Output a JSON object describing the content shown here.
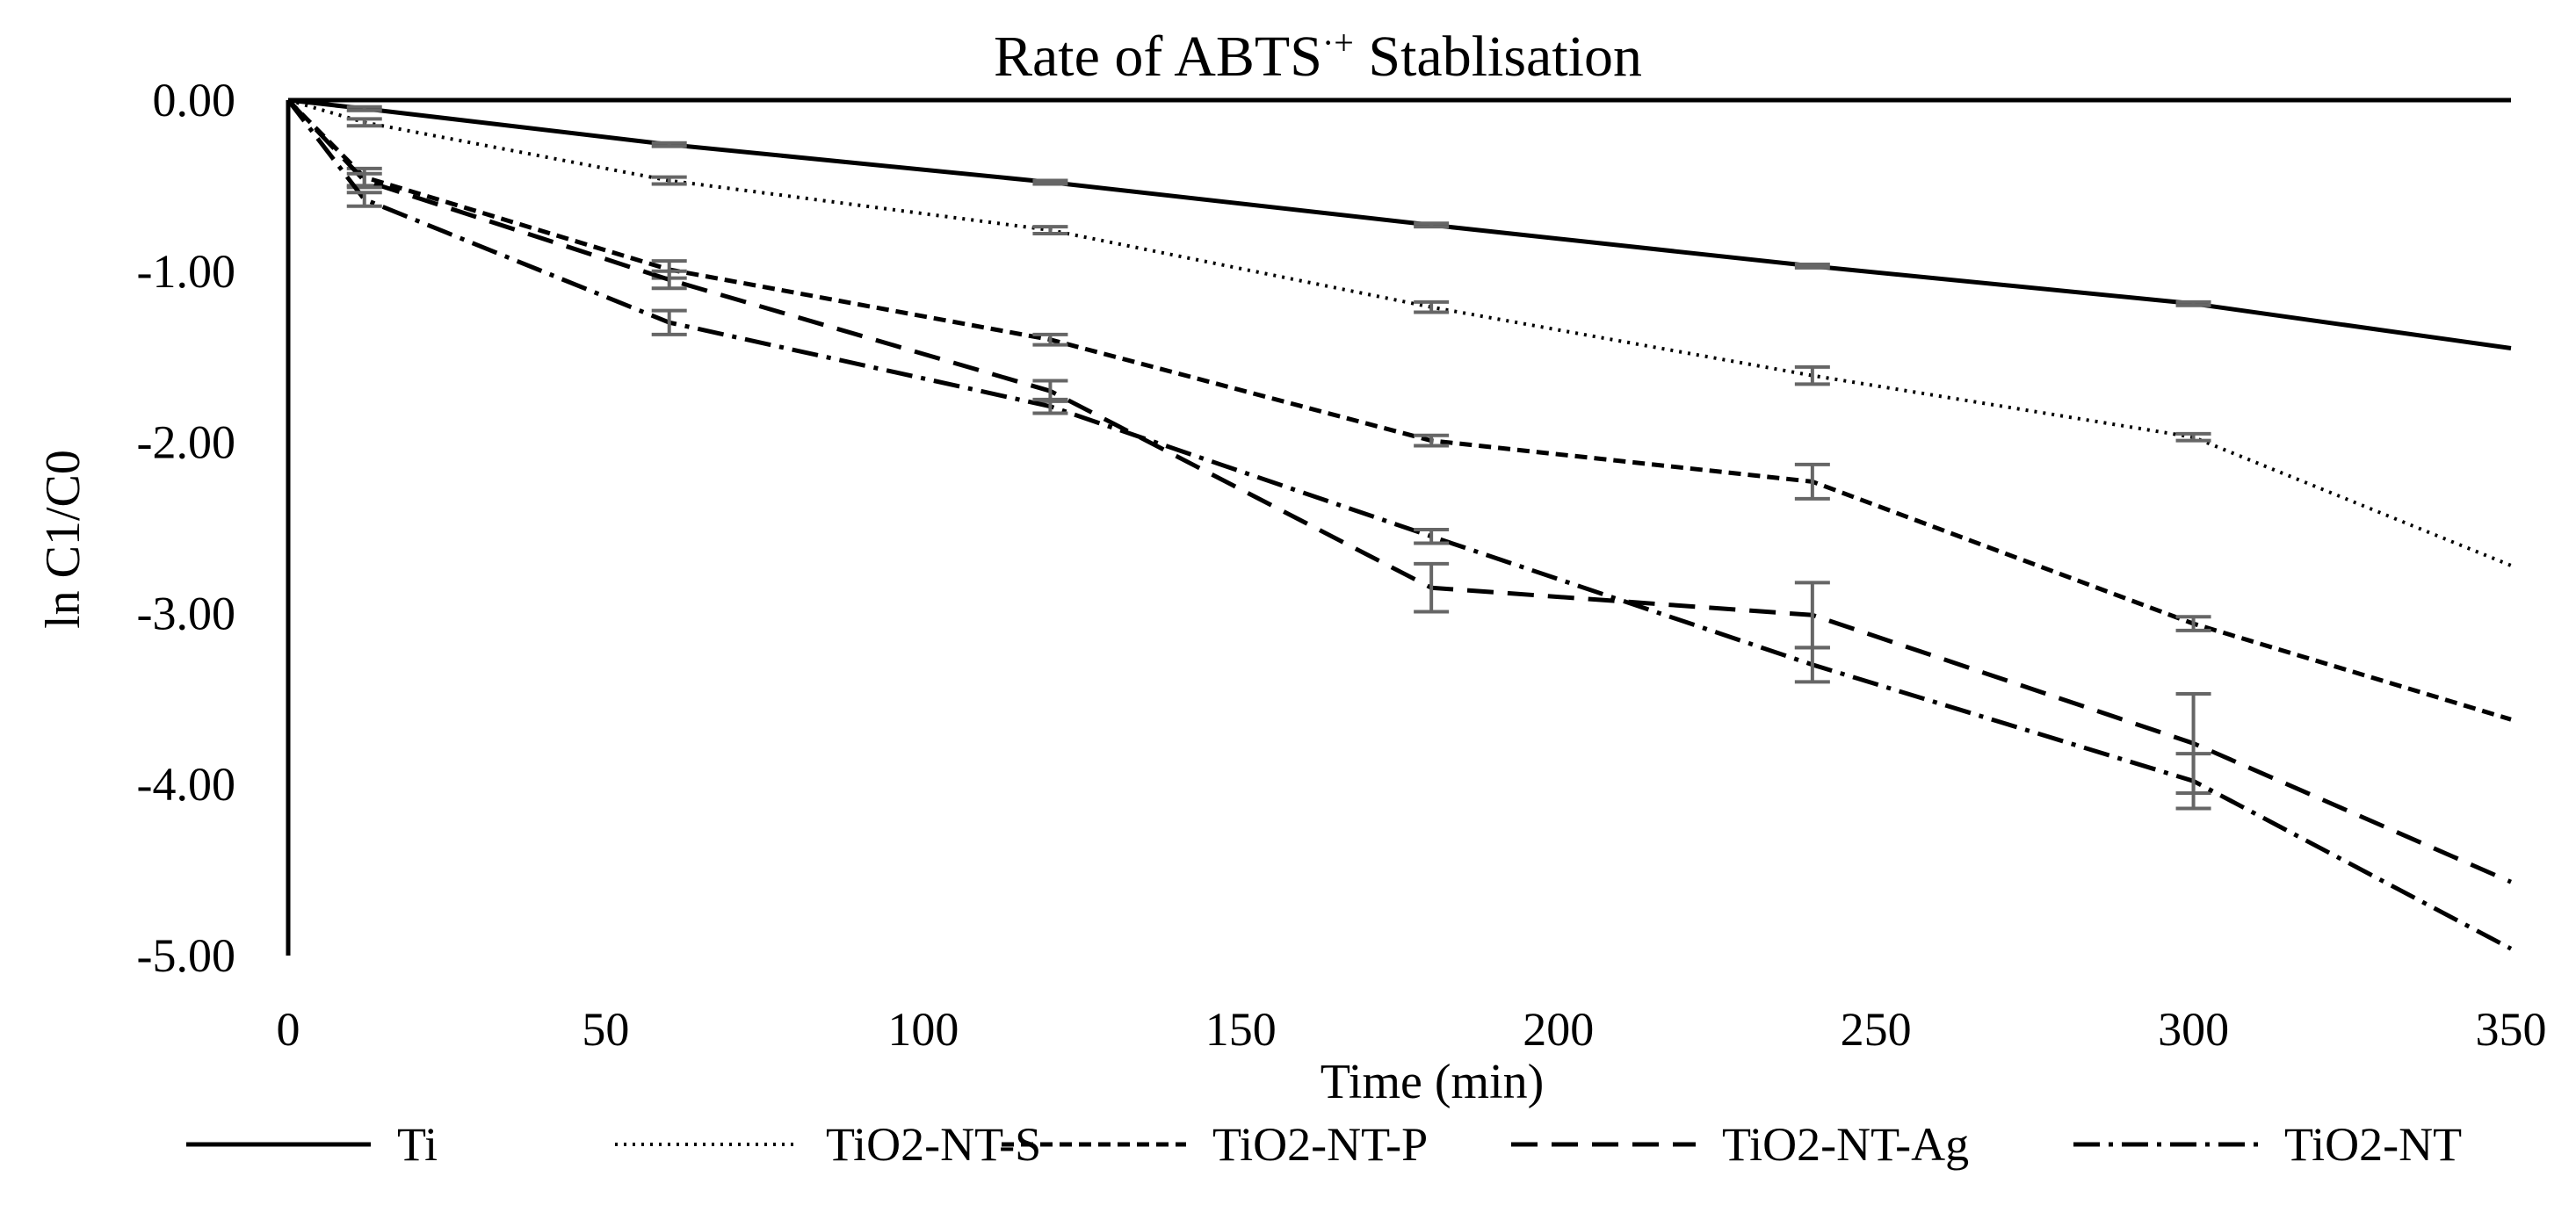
{
  "chart_data": {
    "type": "line",
    "title": "Rate of ABTS",
    "title_superscript": "·+",
    "title_suffix": " Stablisation",
    "xlabel": "Time (min)",
    "ylabel": "ln C1/C0",
    "xlim": [
      0,
      350
    ],
    "ylim": [
      -5,
      0
    ],
    "x_ticks": [
      0,
      50,
      100,
      150,
      200,
      250,
      300,
      350
    ],
    "y_ticks": [
      0,
      -1,
      -2,
      -3,
      -4,
      -5
    ],
    "x_tick_labels": [
      "0",
      "50",
      "100",
      "150",
      "200",
      "250",
      "300",
      "350"
    ],
    "y_tick_labels": [
      "0.00",
      "-1.00",
      "-2.00",
      "-3.00",
      "-4.00",
      "-5.00"
    ],
    "grid": false,
    "legend_position": "bottom",
    "series": [
      {
        "name": "Ti",
        "style": "solid",
        "x": [
          0,
          12,
          60,
          120,
          180,
          240,
          300,
          350
        ],
        "values": [
          0,
          -0.05,
          -0.26,
          -0.48,
          -0.73,
          -0.97,
          -1.19,
          -1.45
        ],
        "errors": [
          0,
          0.01,
          0.01,
          0.01,
          0.01,
          0.01,
          0.01,
          0
        ]
      },
      {
        "name": "TiO2-NT-S",
        "style": "dotted",
        "x": [
          0,
          12,
          60,
          120,
          180,
          240,
          300,
          350
        ],
        "values": [
          0,
          -0.13,
          -0.47,
          -0.76,
          -1.21,
          -1.61,
          -1.97,
          -2.72
        ],
        "errors": [
          0,
          0.02,
          0.02,
          0.02,
          0.03,
          0.05,
          0.02,
          0
        ]
      },
      {
        "name": "TiO2-NT-P",
        "style": "short-dash",
        "x": [
          0,
          12,
          60,
          120,
          180,
          240,
          300,
          350
        ],
        "values": [
          0,
          -0.45,
          -0.99,
          -1.4,
          -1.99,
          -2.23,
          -3.06,
          -3.62
        ],
        "errors": [
          0,
          0.05,
          0.05,
          0.03,
          0.03,
          0.1,
          0.04,
          0
        ]
      },
      {
        "name": "TiO2-NT-Ag",
        "style": "long-dash",
        "x": [
          0,
          12,
          60,
          120,
          180,
          240,
          300,
          350
        ],
        "values": [
          0,
          -0.47,
          -1.05,
          -1.7,
          -2.85,
          -3.01,
          -3.76,
          -4.57
        ],
        "errors": [
          0,
          0.04,
          0.05,
          0.06,
          0.14,
          0.19,
          0.29,
          0
        ]
      },
      {
        "name": "TiO2-NT",
        "style": "dash-dot",
        "x": [
          0,
          12,
          60,
          120,
          180,
          240,
          300,
          350
        ],
        "values": [
          0,
          -0.58,
          -1.3,
          -1.79,
          -2.55,
          -3.3,
          -3.98,
          -4.96
        ],
        "errors": [
          0,
          0.04,
          0.07,
          0.04,
          0.04,
          0.1,
          0.16,
          0
        ]
      }
    ]
  }
}
